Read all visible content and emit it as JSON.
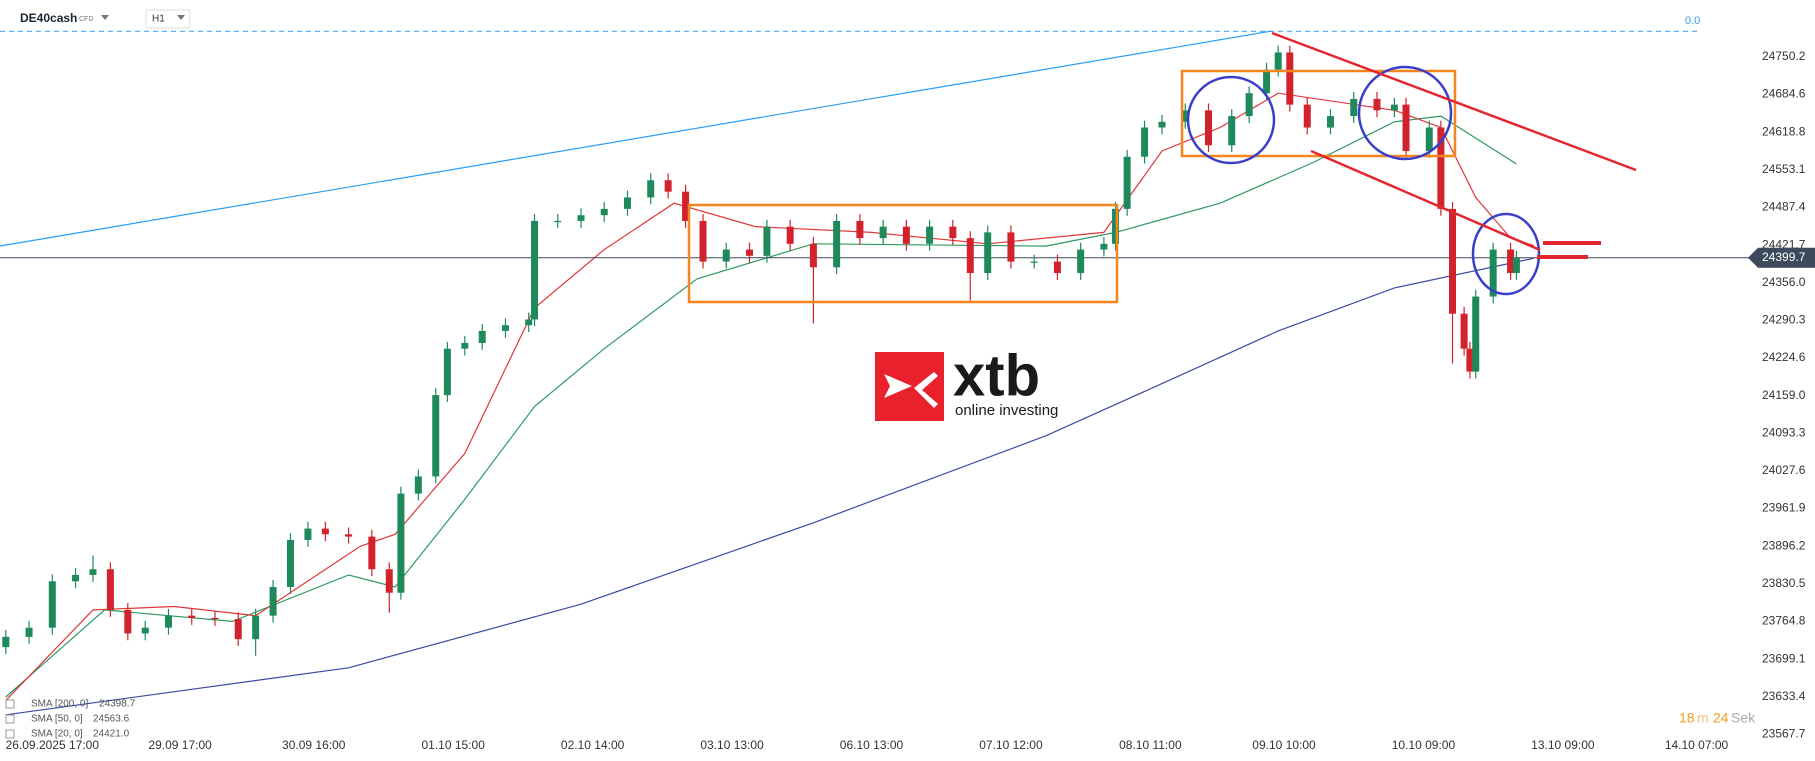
{
  "header": {
    "symbol": "DE40cash",
    "instrument_type": "CFD",
    "timeframe": "H1"
  },
  "logo": {
    "brand": "xtb",
    "tagline": "online investing"
  },
  "countdown": {
    "minutes": 18,
    "minutes_unit": "m",
    "seconds": 24,
    "seconds_unit": "Sek"
  },
  "chart_data": {
    "type": "candlestick",
    "up_color": "#1e8a5c",
    "down_color": "#d2222b",
    "x": [
      1,
      5,
      9,
      13,
      16,
      19,
      22,
      25,
      29,
      33,
      37,
      41,
      44,
      47,
      50,
      53,
      56,
      60,
      64,
      67,
      69,
      72,
      75,
      77,
      80,
      83,
      87,
      91,
      92,
      96,
      100,
      104,
      108,
      112,
      115,
      118,
      121,
      125,
      129,
      132,
      136,
      140,
      144,
      148,
      152,
      156,
      160,
      164,
      167,
      170,
      174,
      178,
      182,
      186,
      190,
      192,
      194,
      197,
      200,
      204,
      208,
      212,
      215,
      218,
      220,
      222,
      225,
      229,
      233,
      237,
      240,
      242,
      246,
      248,
      250,
      252,
      253,
      254,
      257,
      260,
      261
    ],
    "open": [
      23720,
      23738,
      23754,
      23835,
      23846,
      23856,
      23785,
      23744,
      23754,
      23775,
      23771,
      23769,
      23734,
      23775,
      23825,
      23907,
      23927,
      23917,
      23913,
      23856,
      23815,
      23988,
      24018,
      24160,
      24241,
      24251,
      24272,
      24282,
      24292,
      24464,
      24464,
      24474,
      24485,
      24505,
      24535,
      24515,
      24464,
      24393,
      24414,
      24403,
      24454,
      24424,
      24383,
      24464,
      24434,
      24454,
      24424,
      24454,
      24434,
      24373,
      24444,
      24393,
      24393,
      24373,
      24414,
      24424,
      24485,
      24576,
      24627,
      24637,
      24657,
      24596,
      24647,
      24687,
      24728,
      24758,
      24667,
      24627,
      24647,
      24677,
      24657,
      24667,
      24586,
      24627,
      24485,
      24302,
      24241,
      24201,
      24332,
      24414,
      24373
    ],
    "high": [
      23750,
      23766,
      23847,
      23858,
      23880,
      23868,
      23797,
      23766,
      23787,
      23787,
      23783,
      23781,
      23787,
      23837,
      23919,
      23939,
      23939,
      23929,
      23925,
      23868,
      24000,
      24030,
      24172,
      24253,
      24263,
      24284,
      24294,
      24304,
      24476,
      24476,
      24486,
      24497,
      24517,
      24547,
      24547,
      24527,
      24476,
      24426,
      24426,
      24466,
      24466,
      24436,
      24476,
      24476,
      24466,
      24466,
      24466,
      24466,
      24446,
      24456,
      24456,
      24405,
      24405,
      24426,
      24436,
      24497,
      24588,
      24639,
      24649,
      24669,
      24669,
      24659,
      24699,
      24740,
      24770,
      24770,
      24679,
      24659,
      24689,
      24689,
      24679,
      24679,
      24639,
      24639,
      24497,
      24314,
      24253,
      24344,
      24426,
      24426,
      24412
    ],
    "low": [
      23708,
      23726,
      23742,
      23823,
      23834,
      23773,
      23732,
      23732,
      23742,
      23759,
      23757,
      23722,
      23705,
      23763,
      23813,
      23895,
      23905,
      23901,
      23844,
      23780,
      23803,
      23976,
      24006,
      24148,
      24229,
      24239,
      24260,
      24270,
      24280,
      24452,
      24452,
      24462,
      24473,
      24493,
      24503,
      24452,
      24381,
      24381,
      24391,
      24391,
      24412,
      24285,
      24371,
      24422,
      24422,
      24412,
      24412,
      24422,
      24325,
      24361,
      24381,
      24381,
      24361,
      24361,
      24402,
      24412,
      24473,
      24564,
      24615,
      24625,
      24584,
      24584,
      24635,
      24675,
      24716,
      24655,
      24615,
      24615,
      24635,
      24645,
      24645,
      24574,
      24574,
      24473,
      24215,
      24229,
      24189,
      24189,
      24320,
      24361,
      24361
    ],
    "close": [
      23738,
      23754,
      23835,
      23846,
      23856,
      23785,
      23744,
      23754,
      23775,
      23771,
      23769,
      23734,
      23775,
      23825,
      23907,
      23927,
      23917,
      23913,
      23856,
      23815,
      23988,
      24018,
      24160,
      24241,
      24251,
      24272,
      24282,
      24292,
      24464,
      24464,
      24474,
      24485,
      24505,
      24535,
      24515,
      24464,
      24393,
      24414,
      24403,
      24454,
      24424,
      24383,
      24464,
      24434,
      24454,
      24424,
      24454,
      24434,
      24373,
      24444,
      24393,
      24393,
      24373,
      24414,
      24424,
      24485,
      24576,
      24627,
      24637,
      24657,
      24596,
      24647,
      24687,
      24728,
      24758,
      24667,
      24627,
      24647,
      24677,
      24657,
      24667,
      24586,
      24627,
      24485,
      24302,
      24241,
      24201,
      24332,
      24414,
      24373,
      24399.7
    ],
    "series": [
      {
        "name": "SMA [200, 0]",
        "color": "#3b4aa3",
        "last": 24398.7,
        "x": [
          1,
          60,
          100,
          140,
          180,
          200,
          220,
          240,
          264
        ],
        "values": [
          23602,
          23684,
          23795,
          23937,
          24089,
          24180,
          24272,
          24347,
          24398.7
        ]
      },
      {
        "name": "SMA [50, 0]",
        "color": "#2e9a62",
        "last": 24563.6,
        "x": [
          1,
          18,
          40,
          60,
          68,
          80,
          92,
          104,
          120,
          140,
          180,
          192,
          210,
          226,
          240,
          248,
          261
        ],
        "values": [
          23633,
          23785,
          23765,
          23846,
          23825,
          23978,
          24140,
          24241,
          24363,
          24424,
          24420,
          24444,
          24495,
          24566,
          24637,
          24647,
          24563.6
        ]
      },
      {
        "name": "SMA [20, 0]",
        "color": "#e0383a",
        "last": 24421.0,
        "x": [
          1,
          16,
          30,
          44,
          62,
          68,
          80,
          92,
          104,
          116,
          130,
          150,
          170,
          190,
          200,
          210,
          220,
          240,
          248,
          254,
          260,
          264
        ],
        "values": [
          23627,
          23785,
          23791,
          23775,
          23896,
          23917,
          24058,
          24312,
          24414,
          24495,
          24454,
          24444,
          24424,
          24444,
          24586,
          24627,
          24687,
          24657,
          24627,
          24505,
          24434,
          24421
        ]
      }
    ],
    "legend_values": [
      "24398.7",
      "24563.6",
      "24421.0"
    ],
    "current_price": 24399.7,
    "fib_line": {
      "value": 24795,
      "label": "0.0"
    },
    "xlim": [
      0,
      300
    ],
    "ylim": [
      23521.3,
      24849.6
    ],
    "xticks": [
      {
        "value": 9,
        "label": "26.09.2025  17:00"
      },
      {
        "value": 31,
        "label": "29.09 17:00"
      },
      {
        "value": 54,
        "label": "30.09 16:00"
      },
      {
        "value": 78,
        "label": "01.10 15:00"
      },
      {
        "value": 102,
        "label": "02.10 14:00"
      },
      {
        "value": 126,
        "label": "03.10 13:00"
      },
      {
        "value": 150,
        "label": "06.10 13:00"
      },
      {
        "value": 174,
        "label": "07.10 12:00"
      },
      {
        "value": 198,
        "label": "08.10 11:00"
      },
      {
        "value": 221,
        "label": "09.10 10:00"
      },
      {
        "value": 245,
        "label": "10.10 09:00"
      },
      {
        "value": 269,
        "label": "13.10 09:00"
      },
      {
        "value": 292,
        "label": "14.10 07:00"
      }
    ],
    "yticks": [
      24750.2,
      24684.6,
      24618.8,
      24553.1,
      24487.4,
      24421.7,
      {
        "value": 24356,
        "label": "24356.0"
      },
      24290.3,
      24224.6,
      {
        "value": 24159,
        "label": "24159.0"
      },
      24093.3,
      24027.6,
      23961.9,
      23896.2,
      23830.5,
      23764.8,
      23699.1,
      23633.4,
      23567.7
    ]
  }
}
